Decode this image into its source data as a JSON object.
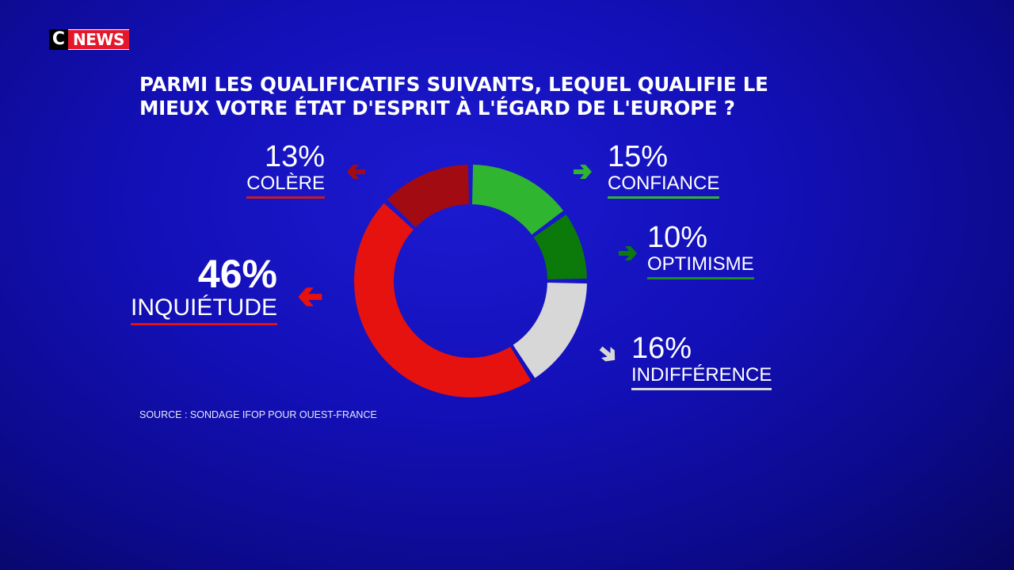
{
  "brand": {
    "c": "C",
    "news": "NEWS"
  },
  "title": "PARMI LES QUALIFICATIFS SUIVANTS, LEQUEL QUALIFIE LE\nMIEUX VOTRE ÉTAT D'ESPRIT À L'ÉGARD DE L'EUROPE ?",
  "source": "SOURCE : SONDAGE IFOP POUR OUEST-FRANCE",
  "chart_data": {
    "type": "pie",
    "variant": "donut",
    "title": "PARMI LES QUALIFICATIFS SUIVANTS, LEQUEL QUALIFIE LE MIEUX VOTRE ÉTAT D'ESPRIT À L'ÉGARD DE L'EUROPE ?",
    "unit": "%",
    "slices": [
      {
        "label": "CONFIANCE",
        "value": 15,
        "pct_label": "15%",
        "color": "#2fb52f"
      },
      {
        "label": "OPTIMISME",
        "value": 10,
        "pct_label": "10%",
        "color": "#0b7a0b"
      },
      {
        "label": "INDIFFÉRENCE",
        "value": 16,
        "pct_label": "16%",
        "color": "#d7d7d7"
      },
      {
        "label": "INQUIÉTUDE",
        "value": 46,
        "pct_label": "46%",
        "color": "#e5120f"
      },
      {
        "label": "COLÈRE",
        "value": 13,
        "pct_label": "13%",
        "color": "#a30b12"
      }
    ]
  }
}
